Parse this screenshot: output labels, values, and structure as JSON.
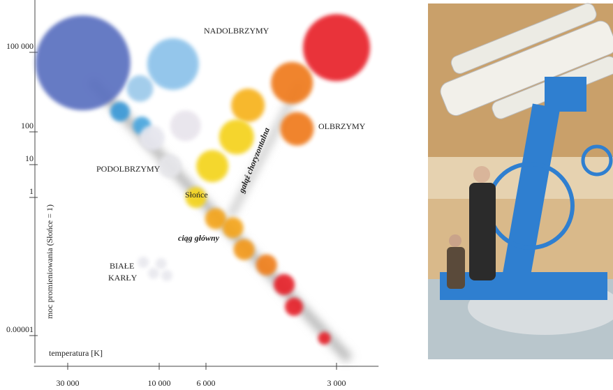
{
  "chart_data": {
    "type": "scatter",
    "x_label": "temperatura [K]",
    "y_label": "moc promieniowania (Słońce = 1)",
    "x_scale": "log",
    "y_scale": "log",
    "x_reversed": true,
    "xlim": [
      45000,
      2400
    ],
    "ylim": [
      1e-06,
      10000000
    ],
    "xticks": [
      {
        "value": 30000,
        "label": "30 000"
      },
      {
        "value": 10000,
        "label": "10 000"
      },
      {
        "value": 6000,
        "label": "6 000"
      },
      {
        "value": 3000,
        "label": "3 000"
      }
    ],
    "yticks": [
      {
        "value": 100000,
        "label": "100 000"
      },
      100,
      10,
      1,
      1e-05
    ],
    "annotations": [
      "NADOLBRZYMY",
      "OLBRZYMY",
      "PODOLBRZYMY",
      "BIAŁE",
      "KARŁY",
      "Słońce",
      "gałąź choryzontalna",
      "ciąg główny"
    ],
    "x": [
      25000,
      8600,
      3000,
      3800,
      4800,
      3700,
      5100,
      5800,
      6700,
      16000,
      12600,
      12300,
      10900,
      7500,
      8900,
      5700,
      5200,
      4900,
      4350,
      3960,
      3760,
      3200,
      12100,
      9800,
      10700,
      9200
    ],
    "values": [
      40000,
      36000,
      150000,
      7000,
      1000,
      130,
      70,
      9,
      1,
      580,
      4300,
      170,
      65,
      170,
      9,
      0.17,
      0.08,
      0.013,
      0.0036,
      0.0007,
      0.00011,
      8e-06,
      0.0045,
      0.004,
      0.0018,
      0.0015
    ],
    "colors": [
      "#5a6fc0",
      "#8cc2ea",
      "#e8202a",
      "#ef7a1e",
      "#f7b21c",
      "#ef7a1e",
      "#f5d21a",
      "#f4d41c",
      "#f4d41c",
      "#3a9ad8",
      "#9cc9ea",
      "#4aa6de",
      "#e6e6ee",
      "#e8e4ec",
      "#e6e6ea",
      "#f4a51c",
      "#f4a51c",
      "#f39a1c",
      "#f0801e",
      "#e6202a",
      "#e6202a",
      "#e6202a",
      "#e8e8ee",
      "#e8e8ee",
      "#e8e8ee",
      "#e8e8ee"
    ]
  }
}
